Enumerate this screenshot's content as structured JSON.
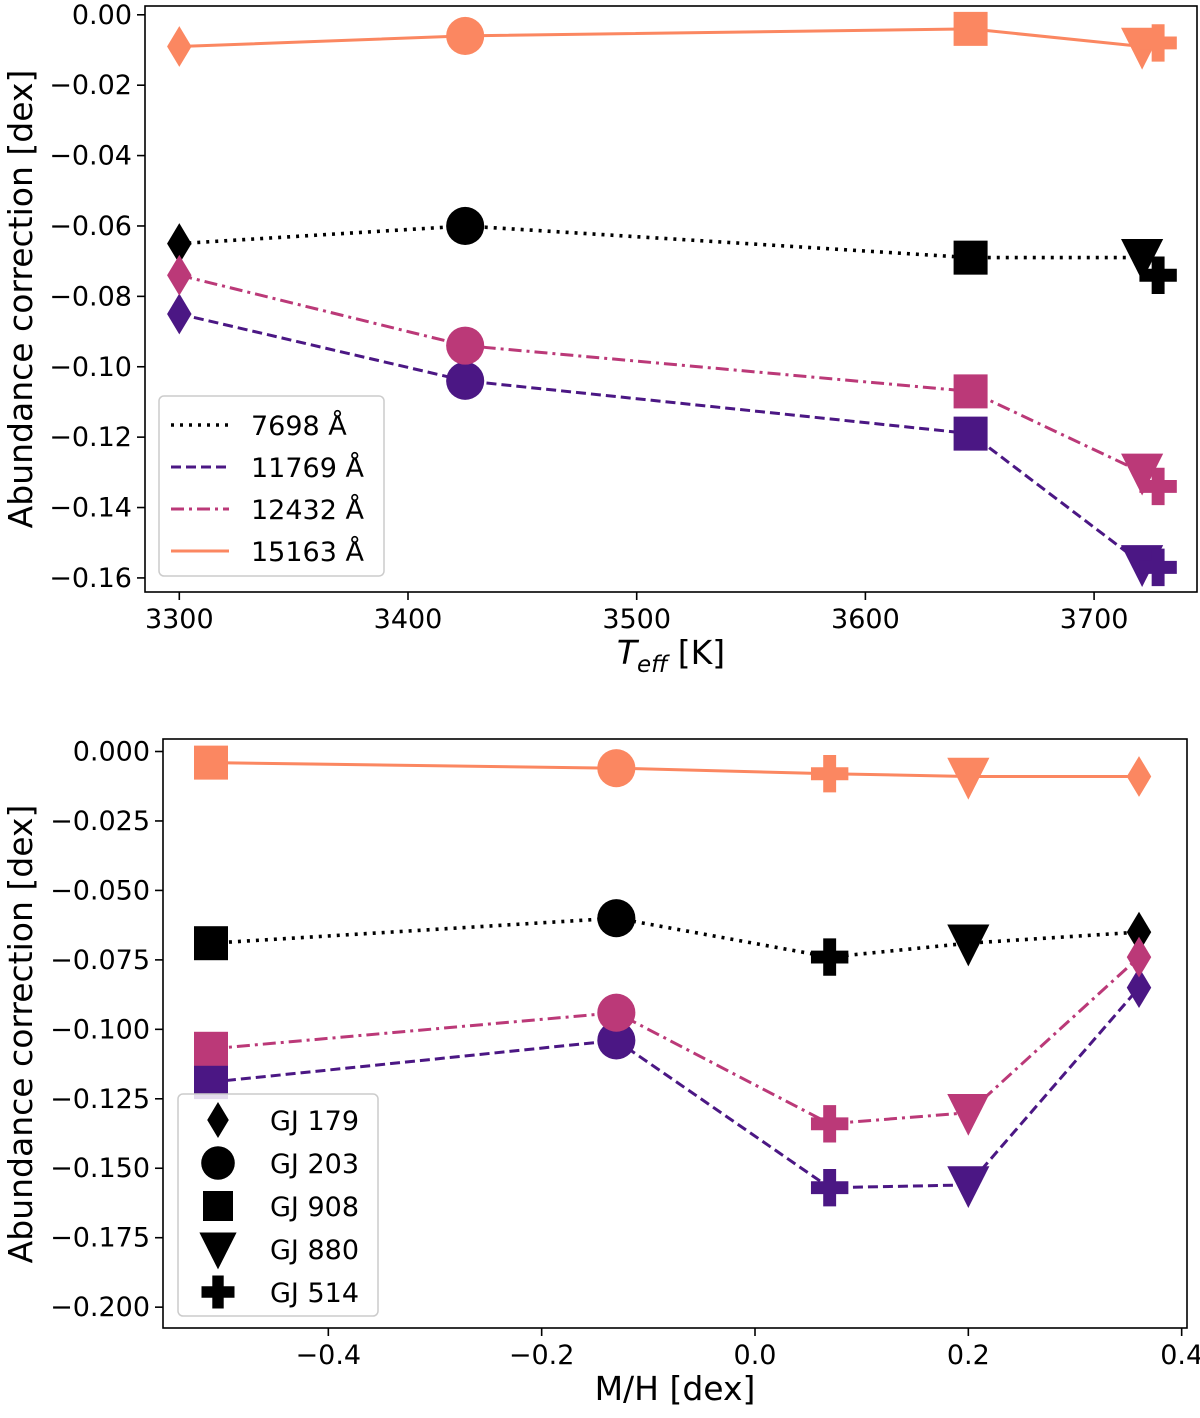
{
  "stars": [
    {
      "id": "GJ 179",
      "marker": "diamond"
    },
    {
      "id": "GJ 203",
      "marker": "circle"
    },
    {
      "id": "GJ 908",
      "marker": "square"
    },
    {
      "id": "GJ 880",
      "marker": "triangle-down"
    },
    {
      "id": "GJ 514",
      "marker": "plus"
    }
  ],
  "lines": [
    {
      "label": "7698 Å",
      "style": "dotted",
      "color": "#000000"
    },
    {
      "label": "11769 Å",
      "style": "dashed",
      "color": "#4b1784"
    },
    {
      "label": "12432 Å",
      "style": "dashdot",
      "color": "#bb3978"
    },
    {
      "label": "15163 Å",
      "style": "solid",
      "color": "#fb8761"
    }
  ],
  "chart_data": [
    {
      "type": "line",
      "title": "",
      "xlabel": "T_eff [K]",
      "xlabel_main": "T",
      "xlabel_sub": "eff",
      "xlabel_units": "[K]",
      "ylabel": "Abundance correction [dex]",
      "xlim": [
        3285,
        3745
      ],
      "ylim": [
        -0.164,
        0.0025
      ],
      "xticks": [
        3300,
        3400,
        3500,
        3600,
        3700
      ],
      "xtick_labels": [
        "3300",
        "3400",
        "3500",
        "3600",
        "3700"
      ],
      "yticks": [
        0.0,
        -0.02,
        -0.04,
        -0.06,
        -0.08,
        -0.1,
        -0.12,
        -0.14,
        -0.16
      ],
      "ytick_labels": [
        "0.00",
        "−0.02",
        "−0.04",
        "−0.06",
        "−0.08",
        "−0.10",
        "−0.12",
        "−0.14",
        "−0.16"
      ],
      "legend_position": "lower-left",
      "legend_kind": "lines",
      "x": [
        3300,
        3425,
        3646,
        3721,
        3728
      ],
      "series": [
        {
          "name": "7698 Å",
          "values": [
            -0.065,
            -0.06,
            -0.069,
            -0.069,
            -0.074
          ]
        },
        {
          "name": "11769 Å",
          "values": [
            -0.085,
            -0.104,
            -0.119,
            -0.156,
            -0.157
          ]
        },
        {
          "name": "12432 Å",
          "values": [
            -0.074,
            -0.094,
            -0.107,
            -0.13,
            -0.134
          ]
        },
        {
          "name": "15163 Å",
          "values": [
            -0.009,
            -0.006,
            -0.004,
            -0.009,
            -0.008
          ]
        }
      ]
    },
    {
      "type": "line",
      "title": "",
      "xlabel": "M/H [dex]",
      "ylabel": "Abundance correction [dex]",
      "xlim": [
        -0.555,
        0.405
      ],
      "ylim": [
        -0.2075,
        0.0045
      ],
      "xticks": [
        -0.4,
        -0.2,
        0.0,
        0.2,
        0.4
      ],
      "xtick_labels": [
        "−0.4",
        "−0.2",
        "0.0",
        "0.2",
        "0.4"
      ],
      "yticks": [
        0.0,
        -0.025,
        -0.05,
        -0.075,
        -0.1,
        -0.125,
        -0.15,
        -0.175,
        -0.2
      ],
      "ytick_labels": [
        "0.000",
        "−0.025",
        "−0.050",
        "−0.075",
        "−0.100",
        "−0.125",
        "−0.150",
        "−0.175",
        "−0.200"
      ],
      "legend_position": "lower-left",
      "legend_kind": "markers",
      "x": [
        0.36,
        -0.13,
        -0.51,
        0.2,
        0.07
      ],
      "plot_order": [
        2,
        1,
        4,
        3,
        0
      ],
      "series": [
        {
          "name": "7698 Å",
          "values": [
            -0.065,
            -0.06,
            -0.069,
            -0.069,
            -0.074
          ]
        },
        {
          "name": "11769 Å",
          "values": [
            -0.085,
            -0.104,
            -0.119,
            -0.156,
            -0.157
          ]
        },
        {
          "name": "12432 Å",
          "values": [
            -0.074,
            -0.094,
            -0.107,
            -0.13,
            -0.134
          ]
        },
        {
          "name": "15163 Å",
          "values": [
            -0.009,
            -0.006,
            -0.004,
            -0.009,
            -0.008
          ]
        }
      ]
    }
  ]
}
